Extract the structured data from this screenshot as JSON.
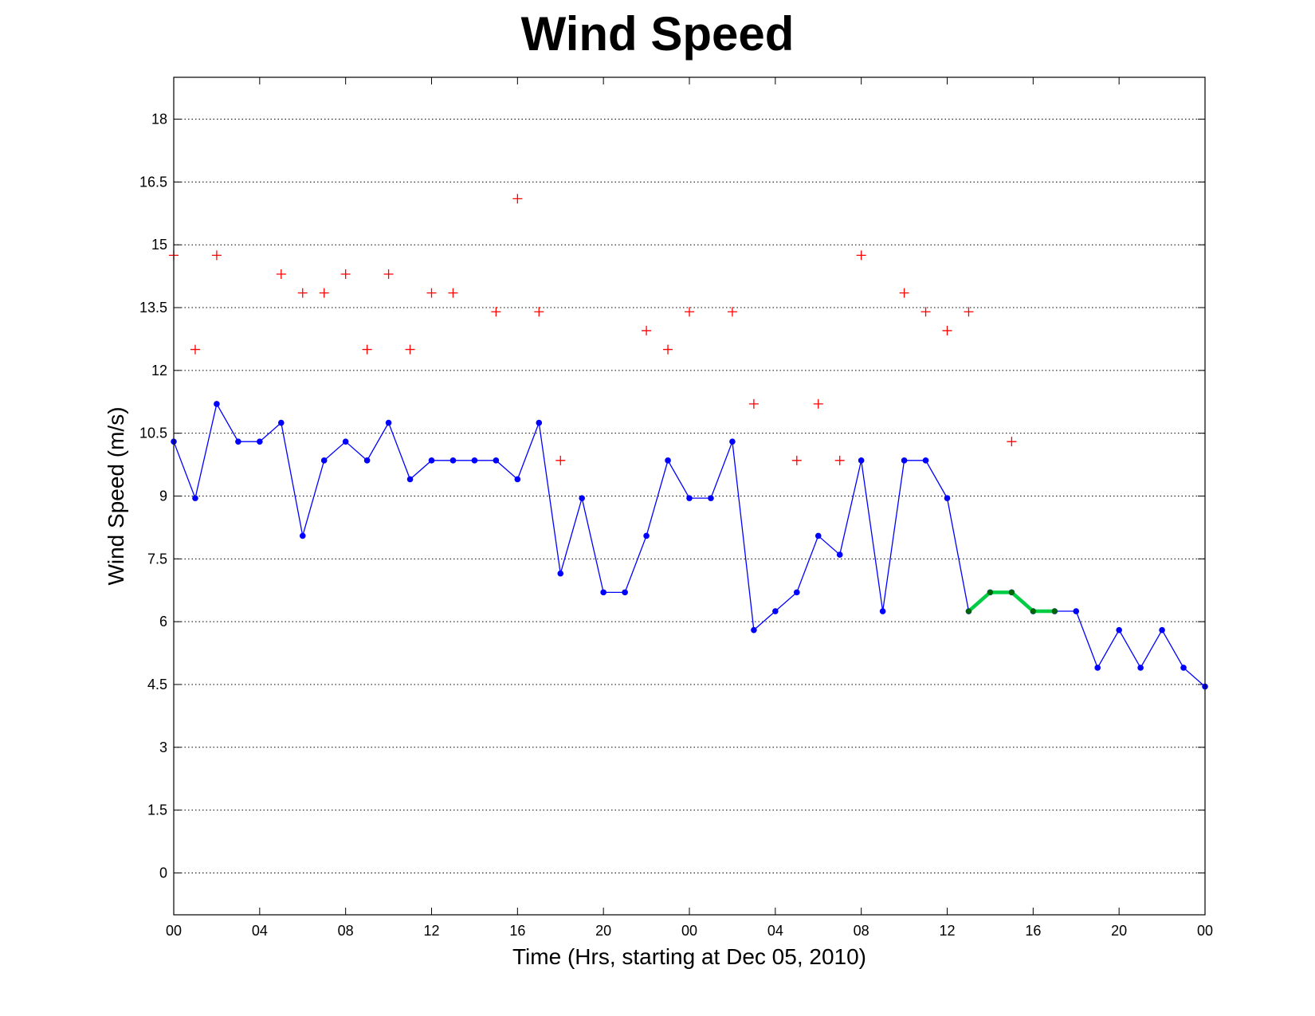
{
  "chart_data": {
    "type": "line",
    "title": "Wind Speed",
    "xlabel": "Time (Hrs, starting at Dec 05, 2010)",
    "ylabel": "Wind Speed (m/s)",
    "xlim": [
      0,
      48
    ],
    "ylim": [
      -1,
      19
    ],
    "grid": "y",
    "x_ticks": [
      0,
      4,
      8,
      12,
      16,
      20,
      24,
      28,
      32,
      36,
      40,
      44,
      48
    ],
    "x_tick_labels": [
      "00",
      "04",
      "08",
      "12",
      "16",
      "20",
      "00",
      "04",
      "08",
      "12",
      "16",
      "20",
      "00"
    ],
    "y_ticks": [
      0,
      1.5,
      3,
      4.5,
      6,
      7.5,
      9,
      10.5,
      12,
      13.5,
      15,
      16.5,
      18
    ],
    "y_tick_labels": [
      "0",
      "1.5",
      "3",
      "4.5",
      "6",
      "7.5",
      "9",
      "10.5",
      "12",
      "13.5",
      "15",
      "16.5",
      "18"
    ],
    "series": [
      {
        "style": "line-dots",
        "color": "#0000ff",
        "x": [
          0,
          1,
          2,
          3,
          4,
          5,
          6,
          7,
          8,
          9,
          10,
          11,
          12,
          13,
          14,
          15,
          16,
          17,
          18,
          19,
          20,
          21,
          22,
          23,
          24,
          25,
          26,
          27,
          28,
          29,
          30,
          31,
          32,
          33,
          34,
          35,
          36,
          37,
          38,
          39,
          40,
          41,
          42,
          43,
          44,
          45,
          46,
          47,
          48
        ],
        "values": [
          10.3,
          8.95,
          11.2,
          10.3,
          10.3,
          10.75,
          8.05,
          9.85,
          10.3,
          9.85,
          10.75,
          9.4,
          9.85,
          9.85,
          9.85,
          9.85,
          9.4,
          10.75,
          7.15,
          8.95,
          6.7,
          6.7,
          8.05,
          9.85,
          8.95,
          8.95,
          10.3,
          5.8,
          6.25,
          6.7,
          8.05,
          7.6,
          9.85,
          6.25,
          9.85,
          9.85,
          8.95,
          6.25,
          6.7,
          6.7,
          6.25,
          6.25,
          6.25,
          4.9,
          5.8,
          4.9,
          5.8,
          4.9,
          4.45
        ]
      },
      {
        "style": "markers-plus",
        "color": "#ff0000",
        "x": [
          0,
          1,
          2,
          5,
          6,
          7,
          8,
          9,
          10,
          11,
          12,
          13,
          15,
          16,
          17,
          18,
          22,
          23,
          24,
          26,
          27,
          29,
          30,
          31,
          32,
          34,
          35,
          36,
          37,
          39
        ],
        "values": [
          14.75,
          12.5,
          14.75,
          14.3,
          13.85,
          13.85,
          14.3,
          12.5,
          14.3,
          12.5,
          13.85,
          13.85,
          13.4,
          16.1,
          13.4,
          9.85,
          12.95,
          12.5,
          13.4,
          13.4,
          11.2,
          9.85,
          11.2,
          9.85,
          14.75,
          13.85,
          13.4,
          12.95,
          13.4,
          10.3
        ]
      },
      {
        "style": "highlight",
        "color": "#00cc44",
        "marker_color": "#006600",
        "x": [
          37,
          38,
          39,
          40,
          41
        ],
        "values": [
          6.25,
          6.7,
          6.7,
          6.25,
          6.25
        ]
      }
    ]
  }
}
